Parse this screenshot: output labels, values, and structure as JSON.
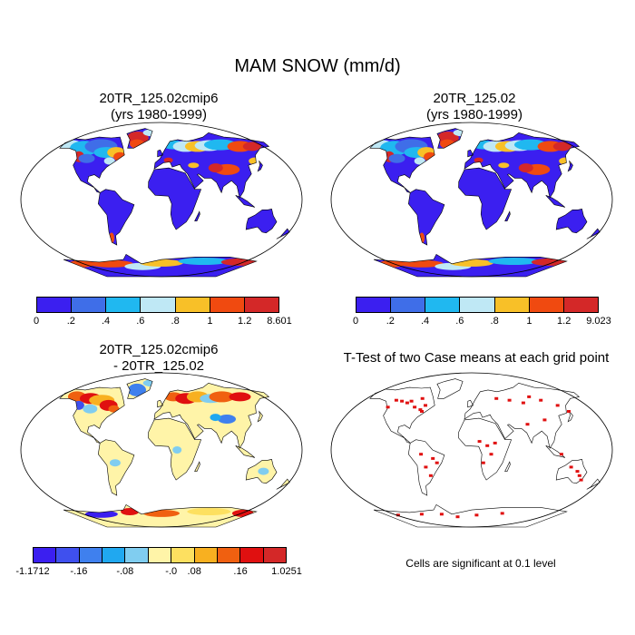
{
  "title": "MAM SNOW (mm/d)",
  "panels": [
    {
      "title_line1": "20TR_125.02cmip6",
      "title_line2": "(yrs 1980-1999)"
    },
    {
      "title_line1": "20TR_125.02",
      "title_line2": "(yrs 1980-1999)"
    },
    {
      "title_line1": "20TR_125.02cmip6",
      "title_line2": "- 20TR_125.02"
    },
    {
      "title_line1": "T-Test of two Case means at each grid point",
      "title_line2": ""
    }
  ],
  "colorbars": {
    "top_left": {
      "colors": [
        "#3b1ff0",
        "#3f6ee8",
        "#20b8f0",
        "#bfe8f5",
        "#f8c028",
        "#f04a10",
        "#d42828"
      ],
      "labels": [
        "0",
        ".2",
        ".4",
        ".6",
        ".8",
        "1",
        "1.2",
        "8.601"
      ]
    },
    "top_right": {
      "colors": [
        "#3b1ff0",
        "#3f6ee8",
        "#20b8f0",
        "#bfe8f5",
        "#f8c028",
        "#f04a10",
        "#d42828"
      ],
      "labels": [
        "0",
        ".2",
        ".4",
        ".6",
        ".8",
        "1",
        "1.2",
        "9.023"
      ]
    },
    "diff": {
      "colors": [
        "#3b1ff0",
        "#3f50ee",
        "#3f80ee",
        "#20a8f0",
        "#80cdf0",
        "#fff4a8",
        "#fde060",
        "#f8b020",
        "#f06010",
        "#e01010",
        "#d42828"
      ],
      "labels": [
        "-1.1712",
        "-.16",
        "-.08",
        "-.0",
        ".08",
        ".16",
        "1.0251"
      ]
    }
  },
  "note": "Cells are significant at 0.1 level",
  "colors": {
    "ocean": "#ffffff",
    "land_base": "#3b1ff0",
    "diff_base": "#fff4a8",
    "ttest": "#e01010"
  }
}
